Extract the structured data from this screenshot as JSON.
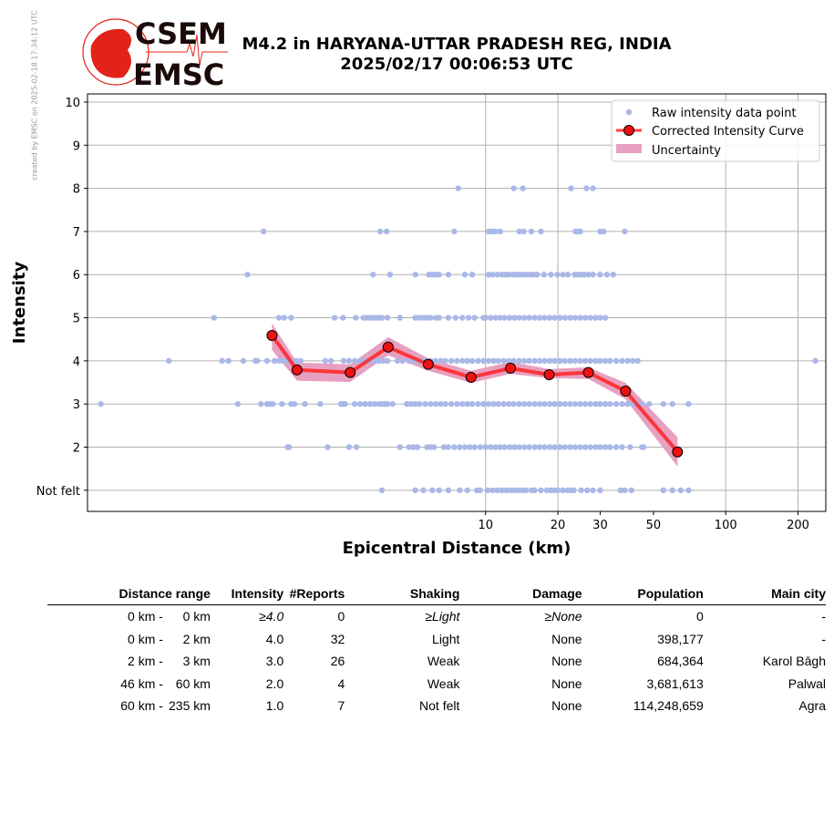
{
  "watermark": "created by EMSC on 2025-02-18 17:34:12 UTC",
  "logo": {
    "top": "CSEM",
    "bottom": "EMSC"
  },
  "title": {
    "line1": "M4.2 in HARYANA-UTTAR PRADESH REG, INDIA",
    "line2": "2025/02/17 00:06:53 UTC"
  },
  "colors": {
    "raw": "#aab8e8",
    "curve": "#ff2222",
    "marker": "#ee1111",
    "uncertainty": "#e8a0c0",
    "logo": "#e2231a"
  },
  "chart_data": {
    "type": "scatter",
    "xlabel": "Epicentral Distance (km)",
    "ylabel": "Intensity",
    "xscale": "log",
    "xlim": [
      0.22,
      261
    ],
    "ylim": [
      0.51,
      10.19
    ],
    "xticks": [
      10,
      20,
      30,
      50,
      100,
      200
    ],
    "xtick_labels": [
      "10",
      "20",
      "30",
      "50",
      "100",
      "200"
    ],
    "xgrid": [
      10,
      20,
      100,
      200
    ],
    "yticks": [
      1,
      2,
      3,
      4,
      5,
      6,
      7,
      8,
      9,
      10
    ],
    "ytick_labels": [
      "Not felt",
      "2",
      "3",
      "4",
      "5",
      "6",
      "7",
      "8",
      "9",
      "10"
    ],
    "grid": true,
    "legend": {
      "placement": "top-right",
      "entries": [
        "Raw intensity data point",
        "Corrected Intensity Curve",
        "Uncertainty"
      ]
    },
    "raw_points": [
      {
        "intensity": 8,
        "distances": [
          7.7,
          13.1,
          14.3,
          22.7,
          26.3,
          28.0
        ]
      },
      {
        "intensity": 7,
        "distances": [
          1.19,
          3.64,
          3.87,
          7.4,
          10.3,
          10.5,
          10.7,
          11.0,
          11.5,
          13.8,
          14.4,
          15.5,
          17.0,
          23.7,
          24.3,
          24.8,
          30,
          31,
          38
        ]
      },
      {
        "intensity": 6,
        "distances": [
          1.02,
          3.4,
          4.0,
          5.1,
          5.8,
          6.0,
          6.2,
          6.4,
          7.0,
          8.2,
          8.8,
          10.3,
          10.7,
          11.2,
          11.7,
          12.1,
          12.5,
          13.0,
          13.4,
          13.8,
          14.3,
          14.8,
          15.3,
          15.8,
          16.4,
          17.5,
          18.7,
          19.9,
          21,
          22,
          23.5,
          24.2,
          25,
          25.8,
          26.8,
          28,
          30,
          32,
          34
        ]
      },
      {
        "intensity": 5,
        "distances": [
          0.74,
          1.38,
          1.45,
          1.55,
          2.35,
          2.55,
          2.88,
          3.1,
          3.2,
          3.3,
          3.4,
          3.5,
          3.6,
          3.7,
          3.9,
          4.4,
          5.1,
          5.3,
          5.5,
          5.7,
          5.9,
          6.2,
          6.4,
          7.0,
          7.5,
          8.0,
          8.5,
          9.0,
          9.8,
          10,
          10.5,
          11,
          11.5,
          12,
          12.6,
          13.2,
          13.8,
          14.5,
          15.2,
          16,
          16.8,
          17.6,
          18.5,
          19.4,
          20.4,
          21.4,
          22.5,
          23.6,
          24.8,
          26,
          27.3,
          28.7,
          30,
          31.5
        ]
      },
      {
        "intensity": 4,
        "distances": [
          0.48,
          0.8,
          0.85,
          0.98,
          1.1,
          1.12,
          1.23,
          1.32,
          1.38,
          1.44,
          1.5,
          1.56,
          1.63,
          1.7,
          2.15,
          2.27,
          2.56,
          2.7,
          2.85,
          3.0,
          3.15,
          3.3,
          3.45,
          3.6,
          3.75,
          3.9,
          4.3,
          4.5,
          4.8,
          5.0,
          5.3,
          5.6,
          5.9,
          6.2,
          6.5,
          6.8,
          7.2,
          7.6,
          8.0,
          8.4,
          8.8,
          9.3,
          9.8,
          10.3,
          10.8,
          11.3,
          11.9,
          12.5,
          13.1,
          13.8,
          14.5,
          15.2,
          16,
          16.8,
          17.6,
          18.5,
          19.4,
          20.4,
          21.4,
          22.5,
          23.6,
          24.8,
          26,
          27.3,
          28.7,
          30,
          31.5,
          33,
          35,
          37,
          39,
          41,
          43,
          236
        ]
      },
      {
        "intensity": 3,
        "distances": [
          0.25,
          0.93,
          1.16,
          1.23,
          1.27,
          1.3,
          1.42,
          1.55,
          1.6,
          1.77,
          2.05,
          2.5,
          2.55,
          2.6,
          2.85,
          3.0,
          3.15,
          3.3,
          3.45,
          3.6,
          3.7,
          3.8,
          3.9,
          4.1,
          4.7,
          4.9,
          5.1,
          5.3,
          5.6,
          5.9,
          6.2,
          6.5,
          6.8,
          7.2,
          7.6,
          8.0,
          8.4,
          8.8,
          9.3,
          9.8,
          10.3,
          10.8,
          11.3,
          11.9,
          12.5,
          13.1,
          13.8,
          14.5,
          15.2,
          16,
          16.8,
          17.6,
          18.5,
          19.4,
          20.4,
          21.4,
          22.5,
          23.6,
          24.8,
          26,
          27.3,
          28.7,
          30,
          31.5,
          33,
          35,
          37,
          39,
          41,
          43,
          45,
          48,
          55,
          60,
          70
        ]
      },
      {
        "intensity": 2,
        "distances": [
          1.5,
          1.52,
          2.2,
          2.7,
          2.9,
          4.4,
          4.8,
          5.0,
          5.2,
          5.7,
          5.9,
          6.1,
          6.7,
          7.0,
          7.4,
          7.8,
          8.2,
          8.6,
          9.0,
          9.5,
          10,
          10.5,
          11,
          11.5,
          12,
          12.6,
          13.2,
          13.8,
          14.5,
          15.2,
          16,
          16.8,
          17.6,
          18.5,
          19.4,
          20.4,
          21.4,
          22.5,
          23.6,
          24.8,
          26,
          27.3,
          28.7,
          30,
          31.5,
          33,
          35,
          37,
          40,
          44.8,
          45.5
        ]
      },
      {
        "intensity": 1,
        "distances": [
          3.7,
          5.1,
          5.5,
          6.0,
          6.4,
          7.0,
          7.8,
          8.4,
          9.2,
          9.5,
          10.2,
          10.7,
          11.2,
          11.7,
          12.2,
          12.7,
          13.2,
          13.7,
          14.2,
          14.7,
          15.5,
          16,
          17.0,
          18.0,
          18.7,
          19.3,
          20,
          21,
          22,
          22.7,
          23.3,
          25,
          26.5,
          28,
          30,
          36.5,
          38,
          40.5,
          55,
          60,
          65,
          70
        ]
      }
    ],
    "corrected_curve": {
      "distances": [
        1.29,
        1.64,
        2.73,
        3.93,
        5.77,
        8.7,
        12.7,
        18.4,
        26.8,
        38.3,
        63.0
      ],
      "intensity": [
        4.59,
        3.79,
        3.73,
        4.32,
        3.92,
        3.62,
        3.83,
        3.68,
        3.73,
        3.3,
        1.89
      ],
      "upper": [
        4.87,
        3.96,
        3.92,
        4.55,
        4.06,
        3.77,
        3.98,
        3.81,
        3.85,
        3.49,
        2.23
      ],
      "lower": [
        4.25,
        3.54,
        3.51,
        4.13,
        3.77,
        3.49,
        3.7,
        3.6,
        3.58,
        3.11,
        1.55
      ]
    }
  },
  "table": {
    "headers": [
      "Distance range",
      "Intensity",
      "#Reports",
      "Shaking",
      "Damage",
      "Population",
      "Main city"
    ],
    "rows": [
      {
        "from": "0 km -",
        "to": "0 km",
        "intensity": "≥4.0",
        "reports": "0",
        "shaking": "≥Light",
        "damage": "≥None",
        "population": "0",
        "city": "-",
        "italic": true
      },
      {
        "from": "0 km -",
        "to": "2 km",
        "intensity": "4.0",
        "reports": "32",
        "shaking": "Light",
        "damage": "None",
        "population": "398,177",
        "city": "-"
      },
      {
        "from": "2 km -",
        "to": "3 km",
        "intensity": "3.0",
        "reports": "26",
        "shaking": "Weak",
        "damage": "None",
        "population": "684,364",
        "city": "Karol Bāgh"
      },
      {
        "from": "46 km -",
        "to": "60 km",
        "intensity": "2.0",
        "reports": "4",
        "shaking": "Weak",
        "damage": "None",
        "population": "3,681,613",
        "city": "Palwal"
      },
      {
        "from": "60 km -",
        "to": "235 km",
        "intensity": "1.0",
        "reports": "7",
        "shaking": "Not felt",
        "damage": "None",
        "population": "114,248,659",
        "city": "Agra"
      }
    ]
  }
}
